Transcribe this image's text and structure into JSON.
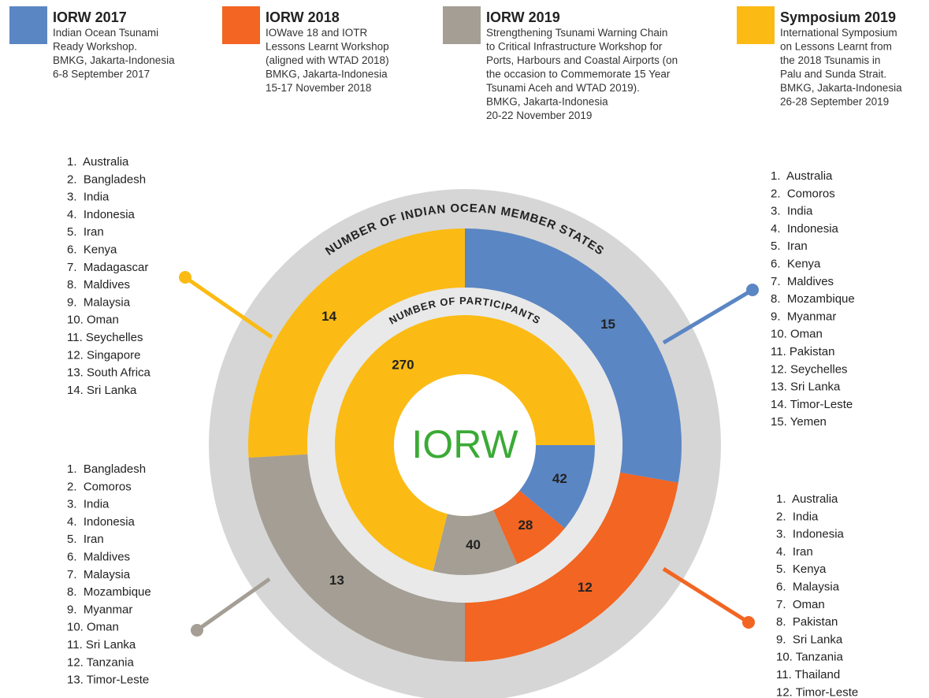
{
  "chart_data": [
    {
      "type": "donut",
      "title": "NUMBER OF INDIAN OCEAN MEMBER STATES",
      "categories": [
        "IORW 2017",
        "IORW 2018",
        "IORW 2019",
        "Symposium 2019"
      ],
      "values": [
        15,
        12,
        13,
        14
      ],
      "colors": [
        "#5b86c4",
        "#f26522",
        "#a49e94",
        "#fbbb14"
      ],
      "start_angle": 0
    },
    {
      "type": "donut",
      "title": "NUMBER OF PARTICIPANTS",
      "categories": [
        "IORW 2017",
        "IORW 2018",
        "IORW 2019",
        "Symposium 2019"
      ],
      "values": [
        42,
        28,
        40,
        270
      ],
      "colors": [
        "#5b86c4",
        "#f26522",
        "#a49e94",
        "#fbbb14"
      ],
      "start_angle": 90
    }
  ],
  "center_text": "IORW",
  "legend_details": [
    [
      "Indian Ocean Tsunami",
      "Ready Workshop.",
      "BMKG, Jakarta-Indonesia",
      "6-8 September 2017"
    ],
    [
      "IOWave 18 and IOTR",
      "Lessons Learnt Workshop",
      "(aligned with WTAD 2018)",
      "BMKG, Jakarta-Indonesia",
      "15-17 November 2018"
    ],
    [
      "Strengthening Tsunami Warning Chain",
      "to Critical Infrastructure Workshop for",
      "Ports, Harbours and Coastal Airports (on",
      "the occasion to Commemorate 15 Year",
      "Tsunami Aceh and WTAD 2019).",
      "BMKG, Jakarta-Indonesia",
      "20-22 November 2019"
    ],
    [
      "International Symposium",
      "on Lessons Learnt from",
      "the 2018 Tsunamis in",
      "Palu and Sunda Strait.",
      "BMKG, Jakarta-Indonesia",
      "26-28 September 2019"
    ]
  ],
  "member_lists": [
    [
      "1.  Australia",
      "2.  Comoros",
      "3.  India",
      "4.  Indonesia",
      "5.  Iran",
      "6.  Kenya",
      "7.  Maldives",
      "8.  Mozambique",
      "9.  Myanmar",
      "10. Oman",
      "11. Pakistan",
      "12. Seychelles",
      "13. Sri Lanka",
      "14. Timor-Leste",
      "15. Yemen"
    ],
    [
      "1.  Australia",
      "2.  India",
      "3.  Indonesia",
      "4.  Iran",
      "5.  Kenya",
      "6.  Malaysia",
      "7.  Oman",
      "8.  Pakistan",
      "9.  Sri Lanka",
      "10. Tanzania",
      "11. Thailand",
      "12. Timor-Leste"
    ],
    [
      "1.  Bangladesh",
      "2.  Comoros",
      "3.  India",
      "4.  Indonesia",
      "5.  Iran",
      "6.  Maldives",
      "7.  Malaysia",
      "8.  Mozambique",
      "9.  Myanmar",
      "10. Oman",
      "11. Sri Lanka",
      "12. Tanzania",
      "13. Timor-Leste"
    ],
    [
      "1.  Australia",
      "2.  Bangladesh",
      "3.  India",
      "4.  Indonesia",
      "5.  Iran",
      "6.  Kenya",
      "7.  Madagascar",
      "8.  Maldives",
      "9.  Malaysia",
      "10. Oman",
      "11. Seychelles",
      "12. Singapore",
      "13. South Africa",
      "14. Sri Lanka"
    ]
  ]
}
